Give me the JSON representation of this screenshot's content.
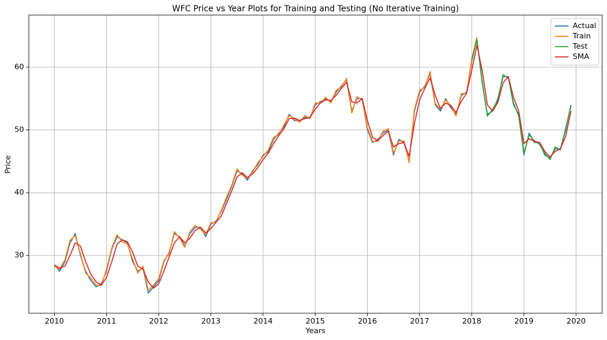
{
  "chart_data": {
    "type": "line",
    "title": "WFC Price vs Year Plots for Training and Testing (No Iterative Training)",
    "x_label": "Years",
    "y_label": "Price",
    "x": [
      2010.0,
      2010.1,
      2010.2,
      2010.3,
      2010.4,
      2010.5,
      2010.6,
      2010.7,
      2010.8,
      2010.9,
      2011.0,
      2011.1,
      2011.2,
      2011.3,
      2011.4,
      2011.5,
      2011.6,
      2011.7,
      2011.8,
      2011.9,
      2012.0,
      2012.1,
      2012.2,
      2012.3,
      2012.4,
      2012.5,
      2012.6,
      2012.7,
      2012.8,
      2012.9,
      2013.0,
      2013.1,
      2013.2,
      2013.3,
      2013.4,
      2013.5,
      2013.6,
      2013.7,
      2013.8,
      2013.9,
      2014.0,
      2014.1,
      2014.2,
      2014.3,
      2014.4,
      2014.5,
      2014.6,
      2014.7,
      2014.8,
      2014.9,
      2015.0,
      2015.1,
      2015.2,
      2015.3,
      2015.4,
      2015.5,
      2015.6,
      2015.7,
      2015.8,
      2015.9,
      2016.0,
      2016.1,
      2016.2,
      2016.3,
      2016.4,
      2016.5,
      2016.6,
      2016.7,
      2016.8,
      2016.9,
      2017.0,
      2017.1,
      2017.2,
      2017.3,
      2017.4,
      2017.5,
      2017.6,
      2017.7,
      2017.8,
      2017.9,
      2018.0,
      2018.1,
      2018.2,
      2018.3,
      2018.4,
      2018.5,
      2018.6,
      2018.7,
      2018.8,
      2018.9,
      2019.0,
      2019.1,
      2019.2,
      2019.3,
      2019.4,
      2019.5,
      2019.6,
      2019.7,
      2019.8,
      2019.9
    ],
    "series": [
      {
        "name": "Actual",
        "color": "#1f77b4",
        "values": [
          28.5,
          27.5,
          29,
          32,
          33.5,
          30,
          27.5,
          26,
          25,
          25.5,
          27.5,
          31,
          33,
          32.5,
          32,
          29,
          27.5,
          28,
          24,
          25,
          26,
          29,
          30.5,
          33.5,
          33,
          31.5,
          33.5,
          34.5,
          34.5,
          33,
          35,
          35.5,
          37,
          39,
          41,
          43.5,
          43,
          42,
          43.5,
          44.5,
          46,
          46.5,
          48.5,
          49.5,
          50.5,
          52.5,
          51.5,
          51.5,
          52,
          52,
          54,
          54.5,
          55,
          54.5,
          56,
          57,
          58,
          53,
          55,
          55,
          50,
          48,
          48.5,
          49.5,
          50,
          46,
          48.5,
          48,
          45,
          53,
          56,
          57,
          59,
          54,
          53,
          55,
          53.5,
          52.5,
          55.5,
          56,
          61,
          64.5,
          57.5,
          52.5,
          53,
          55,
          58.5,
          58.5,
          54,
          52.5,
          46,
          49.5,
          48,
          48,
          46,
          45.5,
          47,
          47,
          50,
          54
        ]
      },
      {
        "name": "Train",
        "color": "#ff7f0e",
        "values": [
          28.3,
          27.8,
          29.3,
          32.4,
          33.2,
          30.3,
          27.2,
          26.4,
          25.3,
          25.2,
          27.8,
          31.2,
          33.3,
          32.2,
          31.8,
          29.4,
          27.2,
          28.3,
          24.4,
          25.3,
          26.3,
          29.2,
          30.3,
          33.8,
          32.8,
          31.3,
          33.8,
          34.8,
          34.2,
          33.3,
          35.2,
          35.3,
          37.2,
          39.3,
          41.2,
          43.8,
          42.8,
          42.3,
          43.3,
          44.8,
          45.8,
          46.8,
          48.8,
          49.3,
          50.8,
          52.3,
          51.8,
          51.2,
          52.3,
          51.8,
          54.3,
          54.3,
          55.2,
          54.3,
          56.3,
          56.8,
          58.2,
          52.7,
          55.3,
          54.8,
          50.3,
          48.2,
          48.2,
          49.8,
          50.2,
          46.3,
          48.2,
          48.3,
          44.8,
          53.3,
          56.3,
          56.8,
          59.3,
          54.2,
          53.3,
          54.8,
          53.8,
          52.2,
          55.8,
          55.8,
          61.3,
          64.8,
          null,
          null,
          null,
          null,
          null,
          null,
          null,
          null,
          null,
          null,
          null,
          null,
          null,
          null,
          null,
          null,
          null,
          null
        ]
      },
      {
        "name": "Test",
        "color": "#2ca02c",
        "values": [
          null,
          null,
          null,
          null,
          null,
          null,
          null,
          null,
          null,
          null,
          null,
          null,
          null,
          null,
          null,
          null,
          null,
          null,
          null,
          null,
          null,
          null,
          null,
          null,
          null,
          null,
          null,
          null,
          null,
          null,
          null,
          null,
          null,
          null,
          null,
          null,
          null,
          null,
          null,
          null,
          null,
          null,
          null,
          null,
          null,
          null,
          null,
          null,
          null,
          null,
          null,
          null,
          null,
          null,
          null,
          null,
          null,
          null,
          null,
          null,
          null,
          null,
          null,
          null,
          null,
          null,
          null,
          null,
          null,
          null,
          null,
          null,
          null,
          null,
          null,
          null,
          null,
          null,
          null,
          null,
          61.2,
          64.3,
          57.8,
          52.2,
          53.3,
          54.7,
          58.8,
          58.3,
          54.3,
          52.2,
          46.3,
          49.2,
          48.3,
          47.7,
          46.3,
          45.3,
          47.3,
          46.8,
          50.3,
          53.8
        ]
      },
      {
        "name": "SMA",
        "color": "#d62728",
        "values": [
          28.5,
          28,
          28.3,
          30,
          32,
          31.5,
          29,
          27,
          25.8,
          25.3,
          26.5,
          29,
          31.8,
          32.5,
          32.2,
          30.5,
          28.3,
          27.8,
          25.8,
          24.8,
          25.5,
          27.5,
          29.8,
          32,
          33,
          32,
          32.8,
          34,
          34.5,
          33.6,
          34.3,
          35.3,
          36.3,
          38.3,
          40.3,
          42.5,
          43.2,
          42.4,
          43,
          44,
          45.3,
          46.3,
          47.8,
          49.1,
          50.2,
          51.8,
          51.9,
          51.5,
          51.8,
          52,
          53.3,
          54.3,
          54.8,
          54.7,
          55.5,
          56.6,
          57.6,
          54.5,
          54.3,
          55,
          51.5,
          48.8,
          48.3,
          49.1,
          49.8,
          47.3,
          47.8,
          48,
          45.8,
          51,
          54.8,
          56.6,
          58.3,
          55.5,
          53.4,
          54.3,
          53.9,
          52.8,
          54.6,
          55.8,
          59.5,
          63.5,
          59.5,
          54,
          53,
          54.4,
          57.5,
          58.5,
          55.2,
          53,
          47.8,
          48.6,
          48.2,
          48,
          46.6,
          45.7,
          46.6,
          47,
          49,
          53
        ]
      }
    ],
    "xlim": [
      2009.51,
      2020.5
    ],
    "xticks": [
      2010,
      2011,
      2012,
      2013,
      2014,
      2015,
      2016,
      2017,
      2018,
      2019,
      2020
    ],
    "ylim": [
      20.8,
      68.3
    ],
    "yticks": [
      30,
      40,
      50,
      60
    ],
    "grid": true,
    "legend": "upper right"
  }
}
